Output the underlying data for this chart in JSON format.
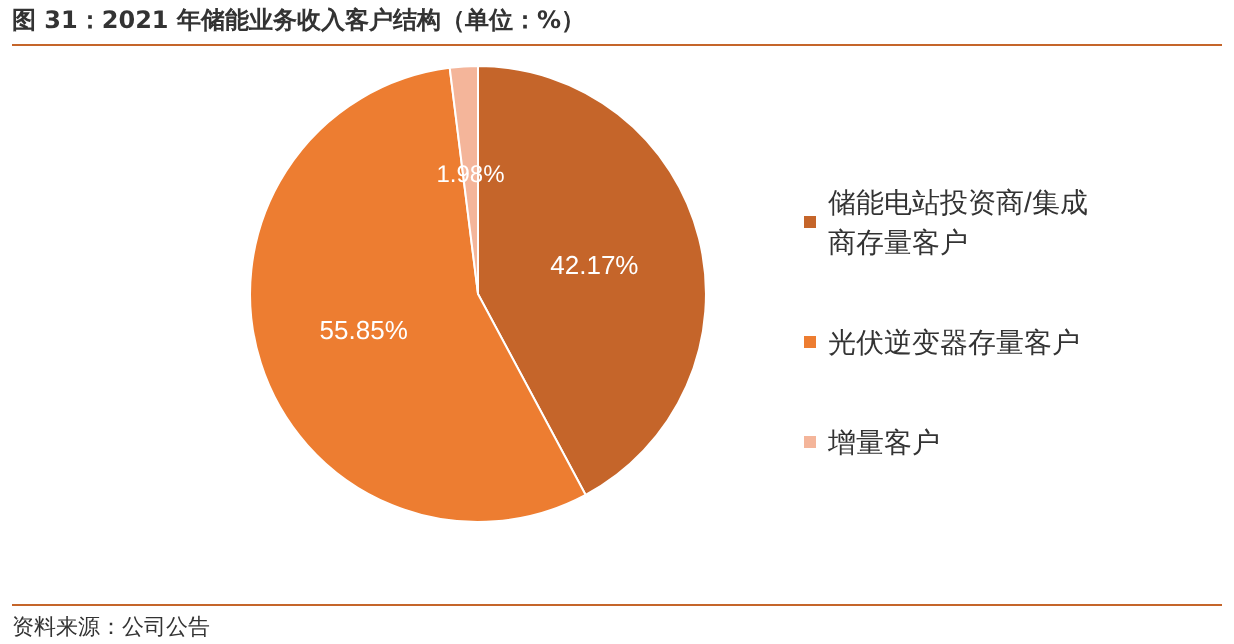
{
  "chart_data": {
    "type": "pie",
    "title": "图 31：2021 年储能业务收入客户结构（单位：%）",
    "categories": [
      "储能电站投资商/集成商存量客户",
      "光伏逆变器存量客户",
      "增量客户"
    ],
    "values": [
      42.17,
      55.85,
      1.98
    ],
    "colors": [
      "#c5652a",
      "#ed7d31",
      "#f4b59a"
    ],
    "value_labels": [
      "42.17%",
      "55.85%",
      "1.98%"
    ],
    "legend": "right",
    "annotations": [
      "资料来源：公司公告"
    ]
  }
}
